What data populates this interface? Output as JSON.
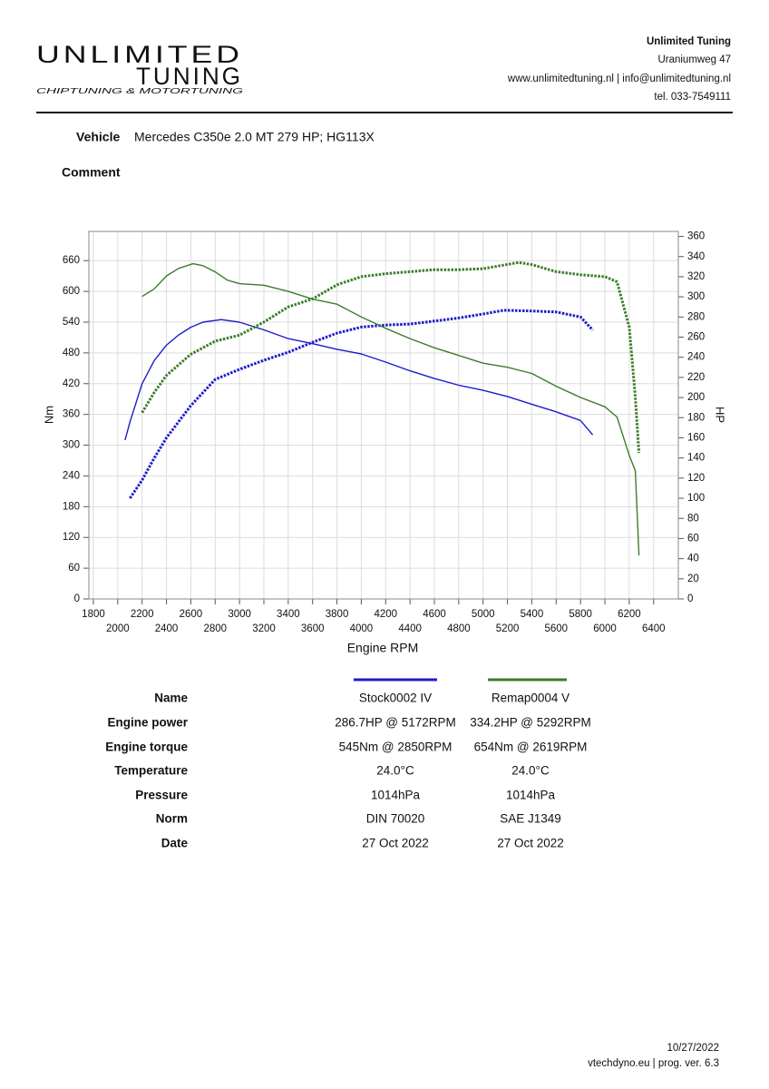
{
  "header": {
    "logo": {
      "line1": "UNLIMITED",
      "line2": "TUNING",
      "tagline": "CHIPTUNING & MOTORTUNING"
    },
    "company": "Unlimited Tuning",
    "address": "Uraniumweg 47",
    "web": "www.unlimitedtuning.nl | info@unlimitedtuning.nl",
    "phone": "tel. 033-7549111"
  },
  "vehicle": {
    "label": "Vehicle",
    "value": "Mercedes C350e 2.0 MT 279 HP; HG113X"
  },
  "comment": {
    "label": "Comment"
  },
  "chart_data": {
    "type": "line",
    "x_label": "Engine RPM",
    "y_label": "Nm",
    "y2_label": "HP",
    "xlim": [
      1763,
      6603
    ],
    "xticks": [
      1800,
      2000,
      2200,
      2400,
      2600,
      2800,
      3000,
      3200,
      3400,
      3600,
      3800,
      4000,
      4200,
      4400,
      4600,
      4800,
      5000,
      5200,
      5400,
      5600,
      5800,
      6000,
      6200,
      6400
    ],
    "ylim": [
      0,
      717
    ],
    "yticks": [
      0,
      60,
      120,
      180,
      240,
      300,
      360,
      420,
      480,
      540,
      600,
      660
    ],
    "y2lim": [
      0,
      365
    ],
    "y2ticks": [
      0,
      20,
      40,
      60,
      80,
      100,
      120,
      140,
      160,
      180,
      200,
      220,
      240,
      260,
      280,
      300,
      320,
      340,
      360
    ],
    "grid": true,
    "series": [
      {
        "color": "#1c1ccc",
        "dashed": false,
        "axis": "y",
        "x": [
          2060,
          2100,
          2200,
          2300,
          2400,
          2500,
          2600,
          2700,
          2850,
          3000,
          3200,
          3400,
          3600,
          3800,
          4000,
          4200,
          4400,
          4600,
          4800,
          5000,
          5200,
          5400,
          5600,
          5800,
          5900
        ],
        "values": [
          310,
          345,
          420,
          465,
          495,
          515,
          530,
          540,
          545,
          540,
          525,
          508,
          498,
          487,
          478,
          462,
          445,
          430,
          417,
          407,
          395,
          380,
          365,
          348,
          320
        ]
      },
      {
        "color": "#1c1ccc",
        "dashed": true,
        "axis": "y2",
        "x": [
          2100,
          2200,
          2300,
          2400,
          2600,
          2800,
          3000,
          3200,
          3400,
          3600,
          3800,
          4000,
          4200,
          4400,
          4600,
          4800,
          5000,
          5172,
          5400,
          5600,
          5800,
          5900
        ],
        "values": [
          100,
          118,
          140,
          160,
          192,
          218,
          228,
          237,
          245,
          255,
          264,
          270,
          272,
          273,
          276,
          279,
          283,
          286.7,
          286,
          285,
          280,
          267
        ]
      },
      {
        "color": "#3b7d2b",
        "dashed": false,
        "axis": "y",
        "x": [
          2200,
          2300,
          2400,
          2500,
          2619,
          2700,
          2800,
          2900,
          3000,
          3200,
          3400,
          3600,
          3800,
          4000,
          4200,
          4400,
          4600,
          4800,
          5000,
          5200,
          5400,
          5600,
          5800,
          6000,
          6100,
          6200,
          6250,
          6280
        ],
        "values": [
          590,
          605,
          630,
          645,
          654,
          650,
          638,
          622,
          615,
          612,
          600,
          585,
          575,
          550,
          528,
          508,
          490,
          475,
          460,
          452,
          440,
          415,
          393,
          375,
          355,
          280,
          250,
          85
        ]
      },
      {
        "color": "#3b7d2b",
        "dashed": true,
        "axis": "y2",
        "x": [
          2200,
          2300,
          2400,
          2600,
          2800,
          3000,
          3200,
          3400,
          3600,
          3800,
          4000,
          4200,
          4400,
          4600,
          4800,
          5000,
          5292,
          5400,
          5600,
          5800,
          6000,
          6100,
          6200,
          6250,
          6280
        ],
        "values": [
          185,
          205,
          222,
          243,
          256,
          262,
          275,
          290,
          298,
          312,
          320,
          323,
          325,
          327,
          327,
          328,
          334.2,
          332,
          325,
          322,
          320,
          315,
          270,
          200,
          145
        ]
      }
    ]
  },
  "table": {
    "rows": [
      [
        "Name",
        "Stock0002 IV",
        "Remap0004 V"
      ],
      [
        "Engine power",
        "286.7HP @  5172RPM",
        "334.2HP @  5292RPM"
      ],
      [
        "Engine torque",
        "545Nm @ 2850RPM",
        "654Nm @ 2619RPM"
      ],
      [
        "Temperature",
        "24.0°C",
        "24.0°C"
      ],
      [
        "Pressure",
        "1014hPa",
        "1014hPa"
      ],
      [
        "Norm",
        "DIN 70020",
        "SAE J1349"
      ],
      [
        "Date",
        "27 Oct 2022",
        "27 Oct 2022"
      ]
    ]
  },
  "footer": {
    "date": "10/27/2022",
    "software": "vtechdyno.eu | prog. ver. 6.3"
  }
}
